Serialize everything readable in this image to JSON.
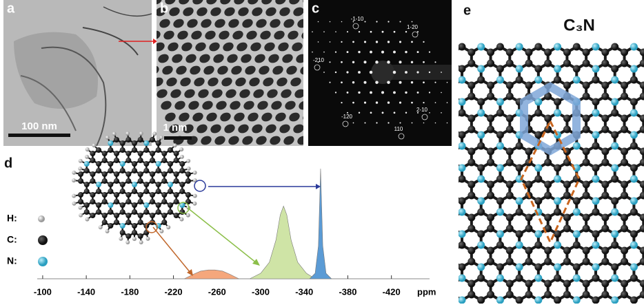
{
  "panels": {
    "a": {
      "label": "a",
      "scale_bar": "100 nm"
    },
    "b": {
      "label": "b",
      "scale_bar": "1 nm"
    },
    "c": {
      "label": "c",
      "spots": [
        "-1-10",
        "1-20",
        "-210",
        "2-10",
        "-120",
        "110"
      ]
    },
    "d": {
      "label": "d",
      "legend": [
        "H:",
        "C:",
        "N:"
      ]
    },
    "e": {
      "label": "e",
      "title": "C₃N"
    }
  },
  "chart_data": {
    "type": "area",
    "xlabel": "ppm",
    "xlim": [
      -95,
      -455
    ],
    "ylim": [
      0,
      100
    ],
    "xticks": [
      -100,
      -140,
      -180,
      -220,
      -260,
      -300,
      -340,
      -380,
      -420
    ],
    "series": [
      {
        "color": "#f5a77c",
        "x": [
          -230,
          -238,
          -245,
          -252,
          -258,
          -265,
          -272,
          -280
        ],
        "values": [
          0,
          4,
          7,
          8,
          8,
          7,
          4,
          0
        ]
      },
      {
        "color": "#cfe4a6",
        "x": [
          -290,
          -300,
          -308,
          -314,
          -318,
          -321,
          -324,
          -328,
          -334,
          -342,
          -350
        ],
        "values": [
          0,
          5,
          15,
          35,
          58,
          66,
          58,
          35,
          15,
          5,
          0
        ]
      },
      {
        "color": "#5b9bd5",
        "x": [
          -345,
          -350,
          -353,
          -355,
          -357,
          -360,
          -365
        ],
        "values": [
          0,
          5,
          30,
          100,
          30,
          5,
          0
        ]
      }
    ]
  }
}
